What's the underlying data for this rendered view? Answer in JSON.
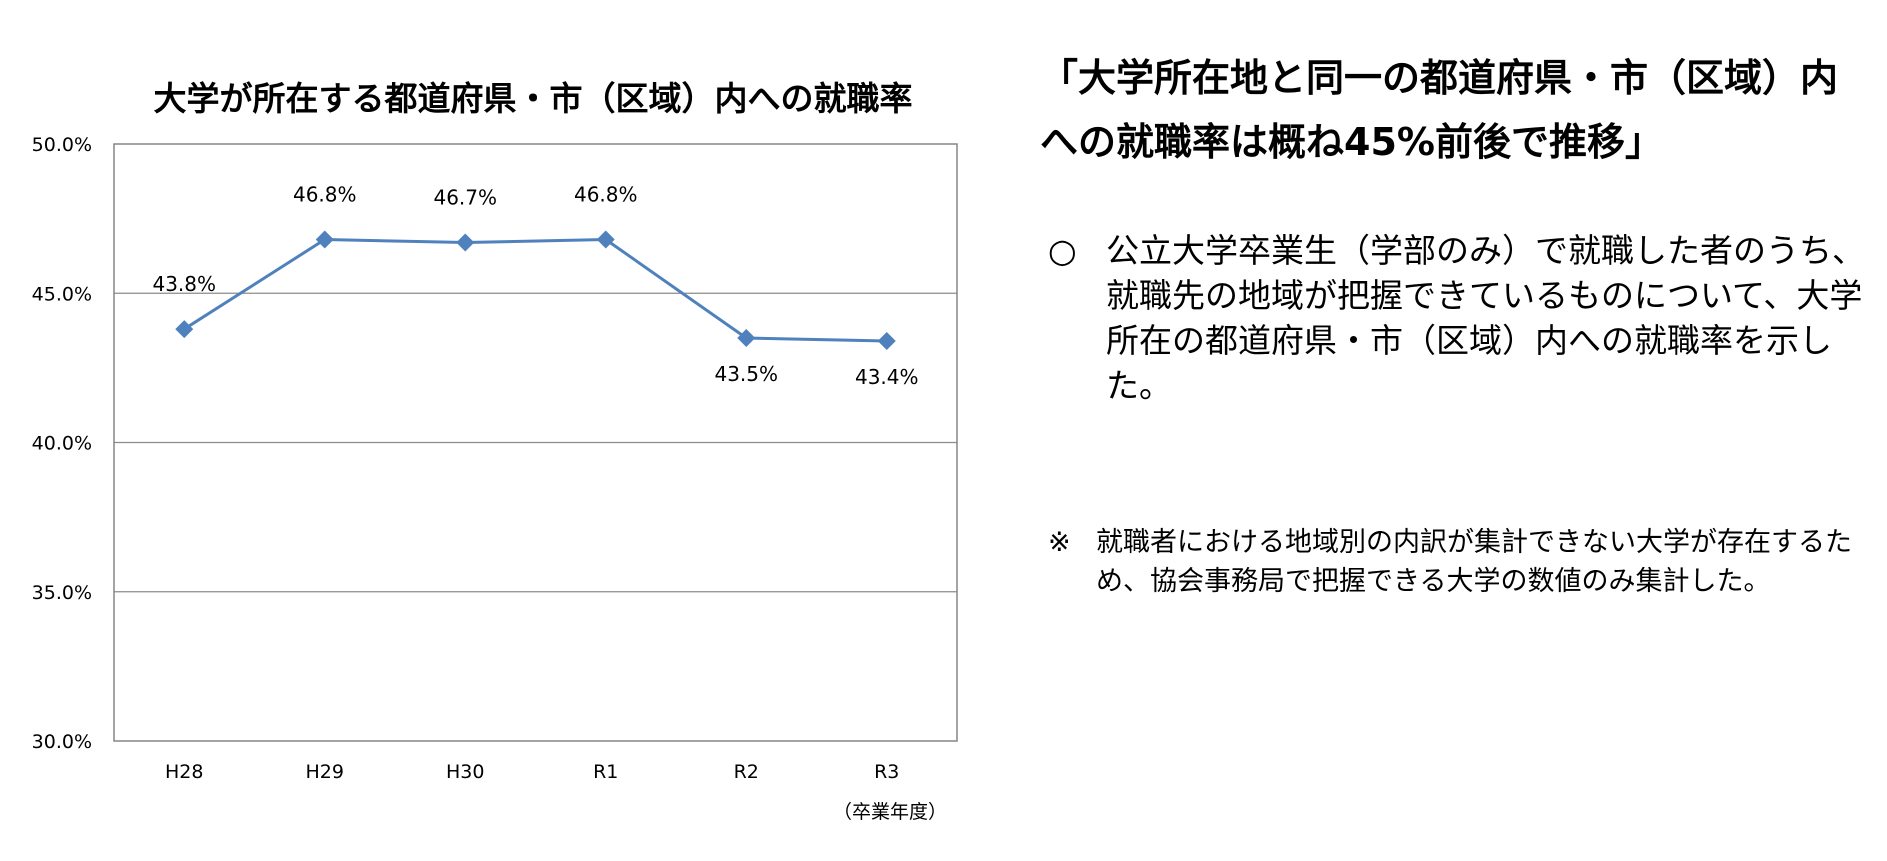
{
  "chart_data": {
    "type": "line",
    "title": "大学が所在する都道府県・市（区域）内への就職率",
    "categories": [
      "H28",
      "H29",
      "H30",
      "R1",
      "R2",
      "R3"
    ],
    "series": [
      {
        "values": [
          43.8,
          46.8,
          46.7,
          46.8,
          43.5,
          43.4
        ]
      }
    ],
    "data_labels": [
      "43.8%",
      "46.8%",
      "46.7%",
      "46.8%",
      "43.5%",
      "43.4%"
    ],
    "y_ticks": [
      30,
      35,
      40,
      45,
      50
    ],
    "y_tick_labels": [
      "30.0%",
      "35.0%",
      "40.0%",
      "45.0%",
      "50.0%"
    ],
    "ylim": [
      30,
      50
    ],
    "xlabel": "（卒業年度）",
    "ylabel": "",
    "grid": true,
    "legend": "none",
    "marker": "diamond",
    "line_color": "#4f81bd"
  },
  "headline": "「大学所在地と同一の都道府県・市（区域）内への就職率は概ね45%前後で推移」",
  "bullet": {
    "mark": "○",
    "text": "公立大学卒業生（学部のみ）で就職した者のうち、就職先の地域が把握できているものについて、大学所在の都道府県・市（区域）内への就職率を示した。"
  },
  "note": {
    "mark": "※",
    "text": "就職者における地域別の内訳が集計できない大学が存在するため、協会事務局で把握できる大学の数値のみ集計した。"
  }
}
